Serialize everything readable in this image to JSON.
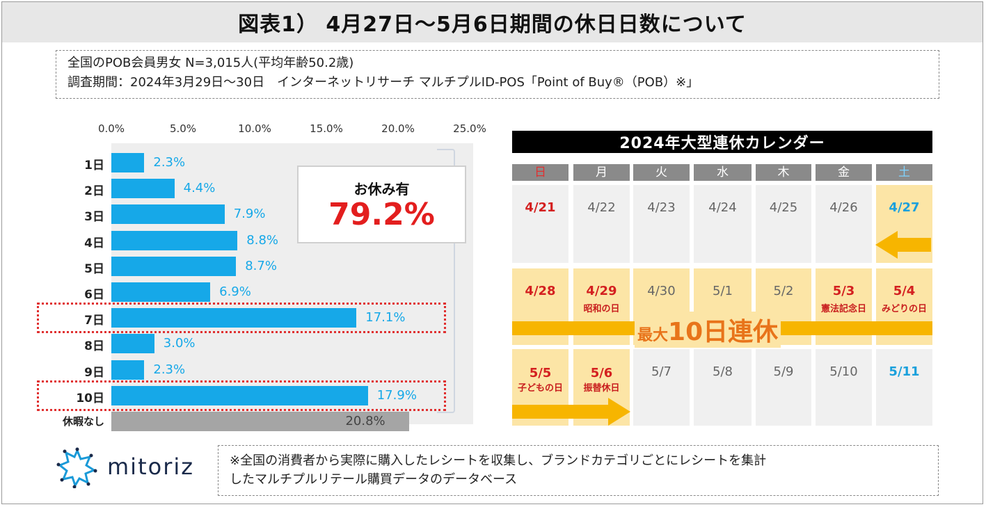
{
  "header": {
    "title": "図表1） 4月27日～5月6日期間の休日日数について"
  },
  "survey": {
    "line1": "全国のPOB会員男女 N=3,015人(平均年齢50.2歳)",
    "line2": "調査期間：2024年3月29日～30日　インターネットリサーチ マルチプルID-POS「Point of Buy®（POB）※」"
  },
  "chart_data": {
    "type": "bar",
    "orientation": "horizontal",
    "categories": [
      "1日",
      "2日",
      "3日",
      "4日",
      "5日",
      "6日",
      "7日",
      "8日",
      "9日",
      "10日",
      "休暇なし"
    ],
    "values": [
      2.3,
      4.4,
      7.9,
      8.8,
      8.7,
      6.9,
      17.1,
      3.0,
      2.3,
      17.9,
      20.8
    ],
    "value_labels": [
      "2.3%",
      "4.4%",
      "7.9%",
      "8.8%",
      "8.7%",
      "6.9%",
      "17.1%",
      "3.0%",
      "2.3%",
      "17.9%",
      "20.8%"
    ],
    "xticks": [
      "0.0%",
      "5.0%",
      "10.0%",
      "15.0%",
      "20.0%",
      "25.0%"
    ],
    "xlim": [
      0,
      25
    ],
    "highlighted": [
      "7日",
      "10日"
    ],
    "bar_color": "#16a8e8",
    "none_color": "#a5a5a5",
    "highlight_color": "#e03030"
  },
  "callout": {
    "title": "お休み有",
    "value": "79.2%"
  },
  "calendar": {
    "title": "2024年大型連休カレンダー",
    "days": [
      "日",
      "月",
      "火",
      "水",
      "木",
      "金",
      "土"
    ],
    "weeks": [
      [
        {
          "d": "4/21",
          "c": "red"
        },
        {
          "d": "4/22"
        },
        {
          "d": "4/23"
        },
        {
          "d": "4/24"
        },
        {
          "d": "4/25"
        },
        {
          "d": "4/26"
        },
        {
          "d": "4/27",
          "c": "blue",
          "hol": true
        }
      ],
      [
        {
          "d": "4/28",
          "c": "red",
          "hol": true
        },
        {
          "d": "4/29",
          "c": "red",
          "hol": true,
          "note": "昭和の日"
        },
        {
          "d": "4/30",
          "hol": true
        },
        {
          "d": "5/1",
          "hol": true
        },
        {
          "d": "5/2",
          "hol": true
        },
        {
          "d": "5/3",
          "c": "red",
          "hol": true,
          "note": "憲法記念日"
        },
        {
          "d": "5/4",
          "c": "red",
          "hol": true,
          "note": "みどりの日"
        }
      ],
      [
        {
          "d": "5/5",
          "c": "red",
          "hol": true,
          "note": "子どもの日"
        },
        {
          "d": "5/6",
          "c": "red",
          "hol": true,
          "note": "振替休日"
        },
        {
          "d": "5/7"
        },
        {
          "d": "5/8"
        },
        {
          "d": "5/9"
        },
        {
          "d": "5/10"
        },
        {
          "d": "5/11",
          "c": "blue"
        }
      ]
    ],
    "max_prefix": "最大",
    "max_value": "10日連休",
    "colors": {
      "holiday_bg": "#fce5a6",
      "arrow": "#f7b500",
      "label": "#e8741a"
    }
  },
  "logo": {
    "text": "mitoriz",
    "icon": "mitoriz-logo-icon"
  },
  "footnote": {
    "line1": "※全国の消費者から実際に購入したレシートを収集し、ブランドカテゴリごとにレシートを集計",
    "line2": "したマルチプルリテール購買データのデータベース"
  }
}
